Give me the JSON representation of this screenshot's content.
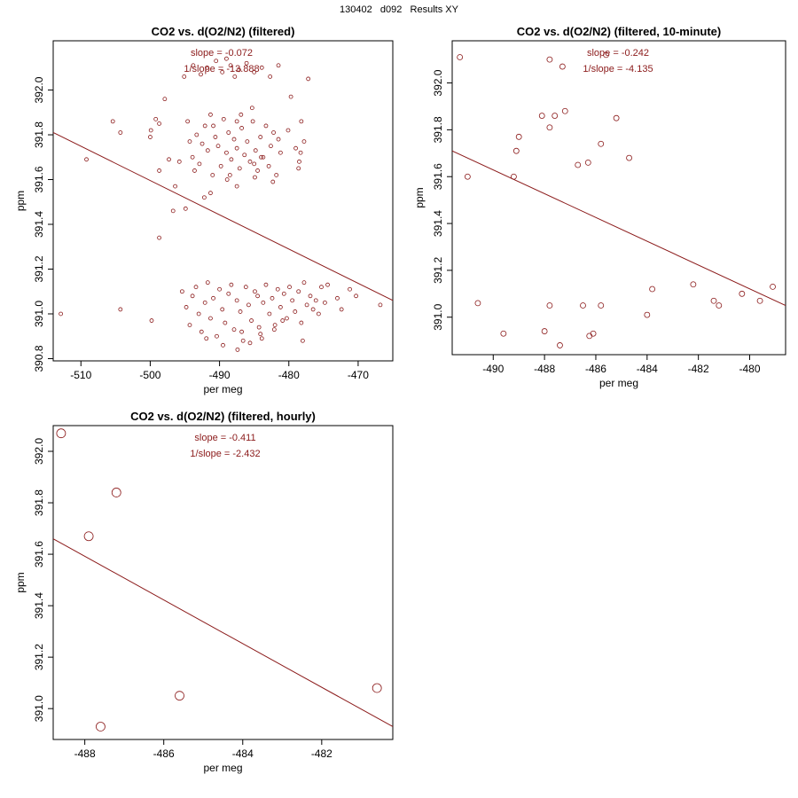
{
  "page_title": "130402   d092   Results XY",
  "colors": {
    "marks": "#8b1a1a",
    "axes": "#000000"
  },
  "chart_data": [
    {
      "type": "scatter",
      "title": "CO2 vs. d(O2/N2) (filtered)",
      "xlabel": "per meg",
      "ylabel": "ppm",
      "xlim": [
        -514,
        -465
      ],
      "ylim": [
        390.79,
        392.22
      ],
      "xticks": [
        "-510",
        "-500",
        "-490",
        "-480",
        "-470"
      ],
      "yticks": [
        "390.8",
        "391.0",
        "391.2",
        "391.4",
        "391.6",
        "391.8",
        "392.0"
      ],
      "slope_text": "slope = -0.072",
      "inv_slope_text": "1/slope = -13.888",
      "fit_line": {
        "x": [
          -514,
          -465
        ],
        "y": [
          391.81,
          391.06
        ]
      },
      "points": [
        [
          -512.9,
          391.0
        ],
        [
          -509.2,
          391.69
        ],
        [
          -505.4,
          391.86
        ],
        [
          -504.3,
          391.02
        ],
        [
          -504.3,
          391.81
        ],
        [
          -500.0,
          391.79
        ],
        [
          -499.9,
          391.82
        ],
        [
          -499.8,
          390.97
        ],
        [
          -499.2,
          391.87
        ],
        [
          -498.7,
          391.64
        ],
        [
          -498.7,
          391.34
        ],
        [
          -498.7,
          391.85
        ],
        [
          -497.9,
          391.96
        ],
        [
          -497.3,
          391.69
        ],
        [
          -496.7,
          391.46
        ],
        [
          -496.4,
          391.57
        ],
        [
          -495.8,
          391.68
        ],
        [
          -494.9,
          391.47
        ],
        [
          -495.1,
          392.06
        ],
        [
          -492.2,
          391.52
        ],
        [
          -491.3,
          391.54
        ],
        [
          -488.5,
          391.62
        ],
        [
          -487.5,
          391.57
        ],
        [
          -485.0,
          391.67
        ],
        [
          -487.5,
          391.86
        ],
        [
          -485.3,
          391.92
        ],
        [
          -484.0,
          391.7
        ],
        [
          -482.3,
          391.59
        ],
        [
          -481.2,
          391.72
        ],
        [
          -480.1,
          391.82
        ],
        [
          -479.0,
          391.74
        ],
        [
          -478.3,
          391.72
        ],
        [
          -478.2,
          391.86
        ],
        [
          -477.8,
          391.77
        ],
        [
          -478.6,
          391.65
        ],
        [
          -478.5,
          391.68
        ],
        [
          -479.7,
          391.97
        ],
        [
          -477.2,
          392.05
        ],
        [
          -494.6,
          391.86
        ],
        [
          -494.3,
          391.77
        ],
        [
          -493.9,
          391.7
        ],
        [
          -493.6,
          391.64
        ],
        [
          -493.3,
          391.8
        ],
        [
          -492.9,
          391.67
        ],
        [
          -492.5,
          391.76
        ],
        [
          -492.1,
          391.84
        ],
        [
          -491.7,
          391.73
        ],
        [
          -491.3,
          391.89
        ],
        [
          -491.0,
          391.62
        ],
        [
          -490.6,
          391.79
        ],
        [
          -490.2,
          391.75
        ],
        [
          -489.8,
          391.66
        ],
        [
          -489.4,
          391.87
        ],
        [
          -489.0,
          391.72
        ],
        [
          -488.7,
          391.81
        ],
        [
          -488.3,
          391.69
        ],
        [
          -487.9,
          391.78
        ],
        [
          -487.5,
          391.74
        ],
        [
          -487.1,
          391.65
        ],
        [
          -486.8,
          391.83
        ],
        [
          -486.4,
          391.71
        ],
        [
          -486.0,
          391.77
        ],
        [
          -485.6,
          391.68
        ],
        [
          -485.2,
          391.86
        ],
        [
          -484.8,
          391.73
        ],
        [
          -484.5,
          391.64
        ],
        [
          -484.1,
          391.79
        ],
        [
          -483.7,
          391.7
        ],
        [
          -483.3,
          391.84
        ],
        [
          -482.9,
          391.66
        ],
        [
          -482.6,
          391.75
        ],
        [
          -482.2,
          391.81
        ],
        [
          -481.8,
          391.62
        ],
        [
          -481.5,
          391.78
        ],
        [
          -490.9,
          391.84
        ],
        [
          -488.9,
          391.6
        ],
        [
          -486.9,
          391.89
        ],
        [
          -484.9,
          391.61
        ],
        [
          -493.8,
          392.11
        ],
        [
          -492.7,
          392.07
        ],
        [
          -491.8,
          392.1
        ],
        [
          -490.5,
          392.13
        ],
        [
          -489.6,
          392.08
        ],
        [
          -488.4,
          392.11
        ],
        [
          -487.2,
          392.09
        ],
        [
          -486.1,
          392.12
        ],
        [
          -485.0,
          392.08
        ],
        [
          -483.9,
          392.1
        ],
        [
          -482.7,
          392.06
        ],
        [
          -481.5,
          392.11
        ],
        [
          -489.0,
          392.14
        ],
        [
          -487.8,
          392.06
        ],
        [
          -495.4,
          391.1
        ],
        [
          -494.8,
          391.03
        ],
        [
          -494.3,
          390.95
        ],
        [
          -493.9,
          391.08
        ],
        [
          -493.4,
          391.12
        ],
        [
          -493.0,
          391.0
        ],
        [
          -492.6,
          390.92
        ],
        [
          -492.1,
          391.05
        ],
        [
          -491.7,
          391.14
        ],
        [
          -491.3,
          390.98
        ],
        [
          -490.9,
          391.07
        ],
        [
          -490.4,
          390.9
        ],
        [
          -490.0,
          391.11
        ],
        [
          -489.6,
          391.02
        ],
        [
          -489.2,
          390.96
        ],
        [
          -488.7,
          391.09
        ],
        [
          -488.3,
          391.13
        ],
        [
          -487.9,
          390.93
        ],
        [
          -487.5,
          391.06
        ],
        [
          -487.0,
          391.01
        ],
        [
          -486.6,
          390.88
        ],
        [
          -486.2,
          391.12
        ],
        [
          -485.8,
          391.04
        ],
        [
          -485.4,
          390.97
        ],
        [
          -484.9,
          391.1
        ],
        [
          -484.5,
          391.08
        ],
        [
          -484.1,
          390.91
        ],
        [
          -483.7,
          391.05
        ],
        [
          -483.3,
          391.13
        ],
        [
          -482.8,
          391.0
        ],
        [
          -482.4,
          391.07
        ],
        [
          -482.0,
          390.95
        ],
        [
          -481.6,
          391.11
        ],
        [
          -481.2,
          391.03
        ],
        [
          -480.7,
          391.09
        ],
        [
          -480.3,
          390.98
        ],
        [
          -479.9,
          391.12
        ],
        [
          -479.5,
          391.06
        ],
        [
          -479.1,
          391.01
        ],
        [
          -478.6,
          391.1
        ],
        [
          -478.2,
          390.96
        ],
        [
          -477.8,
          391.14
        ],
        [
          -477.4,
          391.04
        ],
        [
          -476.9,
          391.08
        ],
        [
          -476.5,
          391.02
        ],
        [
          -476.1,
          391.06
        ],
        [
          -475.7,
          391.0
        ],
        [
          -475.3,
          391.12
        ],
        [
          -474.8,
          391.05
        ],
        [
          -474.4,
          391.13
        ],
        [
          -473.0,
          391.07
        ],
        [
          -472.4,
          391.02
        ],
        [
          -471.2,
          391.11
        ],
        [
          -470.3,
          391.08
        ],
        [
          -466.8,
          391.04
        ],
        [
          -489.5,
          390.86
        ],
        [
          -487.4,
          390.84
        ],
        [
          -485.6,
          390.87
        ],
        [
          -483.9,
          390.89
        ],
        [
          -482.1,
          390.93
        ],
        [
          -491.9,
          390.89
        ],
        [
          -486.8,
          390.92
        ],
        [
          -484.3,
          390.94
        ],
        [
          -480.9,
          390.97
        ],
        [
          -478.0,
          390.88
        ]
      ]
    },
    {
      "type": "scatter",
      "title": "CO2 vs. d(O2/N2) (filtered, 10-minute)",
      "xlabel": "per meg",
      "ylabel": "ppm",
      "xlim": [
        -491.6,
        -478.6
      ],
      "ylim": [
        390.84,
        392.18
      ],
      "xticks": [
        "-490",
        "-488",
        "-486",
        "-484",
        "-482",
        "-480"
      ],
      "yticks": [
        "391.0",
        "391.2",
        "391.4",
        "391.6",
        "391.8",
        "392.0"
      ],
      "slope_text": "slope = -0.242",
      "inv_slope_text": "1/slope = -4.135",
      "fit_line": {
        "x": [
          -491.6,
          -478.6
        ],
        "y": [
          391.71,
          391.05
        ]
      },
      "points": [
        [
          -491.3,
          392.11
        ],
        [
          -491.0,
          391.6
        ],
        [
          -490.6,
          391.06
        ],
        [
          -489.6,
          390.93
        ],
        [
          -489.2,
          391.6
        ],
        [
          -489.1,
          391.71
        ],
        [
          -489.0,
          391.77
        ],
        [
          -488.1,
          391.86
        ],
        [
          -488.0,
          390.94
        ],
        [
          -487.8,
          391.81
        ],
        [
          -487.8,
          392.1
        ],
        [
          -487.8,
          391.05
        ],
        [
          -487.6,
          391.86
        ],
        [
          -487.4,
          390.88
        ],
        [
          -487.3,
          392.07
        ],
        [
          -487.2,
          391.88
        ],
        [
          -486.7,
          391.65
        ],
        [
          -486.5,
          391.05
        ],
        [
          -486.3,
          391.66
        ],
        [
          -486.25,
          390.92
        ],
        [
          -486.1,
          390.93
        ],
        [
          -485.8,
          391.74
        ],
        [
          -485.8,
          391.05
        ],
        [
          -485.6,
          392.12
        ],
        [
          -485.2,
          391.85
        ],
        [
          -484.7,
          391.68
        ],
        [
          -484.0,
          391.01
        ],
        [
          -483.8,
          391.12
        ],
        [
          -482.2,
          391.14
        ],
        [
          -481.4,
          391.07
        ],
        [
          -481.2,
          391.05
        ],
        [
          -480.3,
          391.1
        ],
        [
          -479.6,
          391.07
        ],
        [
          -479.1,
          391.13
        ]
      ]
    },
    {
      "type": "scatter",
      "title": "CO2 vs. d(O2/N2) (filtered, hourly)",
      "xlabel": "per meg",
      "ylabel": "ppm",
      "xlim": [
        -488.8,
        -480.2
      ],
      "ylim": [
        390.88,
        392.1
      ],
      "xticks": [
        "-488",
        "-486",
        "-484",
        "-482"
      ],
      "yticks": [
        "391.0",
        "391.2",
        "391.4",
        "391.6",
        "391.8",
        "392.0"
      ],
      "slope_text": "slope = -0.411",
      "inv_slope_text": "1/slope = -2.432",
      "fit_line": {
        "x": [
          -488.8,
          -480.2
        ],
        "y": [
          391.66,
          390.93
        ]
      },
      "points": [
        [
          -488.6,
          392.07
        ],
        [
          -487.9,
          391.67
        ],
        [
          -487.6,
          390.93
        ],
        [
          -487.2,
          391.84
        ],
        [
          -485.6,
          391.05
        ],
        [
          -480.6,
          391.08
        ]
      ]
    }
  ]
}
